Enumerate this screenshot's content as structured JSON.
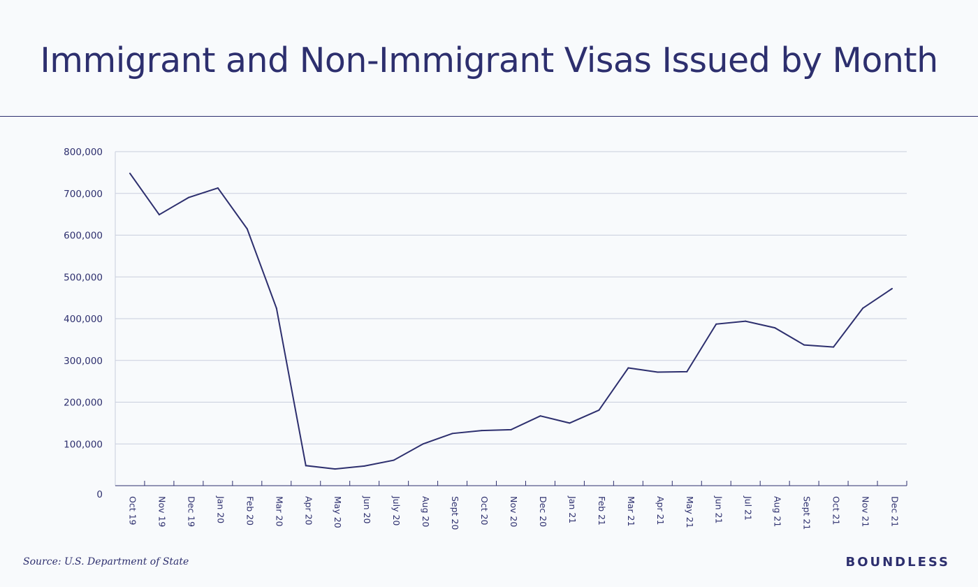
{
  "page": {
    "title": "Immigrant and Non-Immigrant Visas Issued by Month",
    "source": "Source: U.S. Department of State",
    "brand": "BOUNDLESS"
  },
  "colors": {
    "line": "#2d2f6e",
    "grid": "#c9cedd",
    "text": "#2d2f6e",
    "background": "#f8fafc"
  },
  "chart_data": {
    "type": "line",
    "title": "Immigrant and Non-Immigrant Visas Issued by Month",
    "xlabel": "",
    "ylabel": "",
    "ylim": [
      0,
      800000
    ],
    "yticks": [
      0,
      100000,
      200000,
      300000,
      400000,
      500000,
      600000,
      700000,
      800000
    ],
    "ytick_labels": [
      "0",
      "100,000",
      "200,000",
      "300,000",
      "400,000",
      "500,000",
      "600,000",
      "700,000",
      "800,000"
    ],
    "grid": true,
    "categories": [
      "Oct 19",
      "Nov 19",
      "Dec 19",
      "Jan 20",
      "Feb 20",
      "Mar 20",
      "Apr 20",
      "May 20",
      "Jun 20",
      "July 20",
      "Aug 20",
      "Sept 20",
      "Oct 20",
      "Nov 20",
      "Dec 20",
      "Jan 21",
      "Feb 21",
      "Mar 21",
      "Apr 21",
      "May 21",
      "Jun 21",
      "Jul 21",
      "Aug 21",
      "Sept 21",
      "Oct 21",
      "Nov 21",
      "Dec 21"
    ],
    "values": [
      748000,
      649000,
      690000,
      713000,
      615000,
      425000,
      48000,
      40000,
      47000,
      61000,
      100000,
      125000,
      132000,
      134000,
      167000,
      150000,
      181000,
      282000,
      272000,
      273000,
      387000,
      394000,
      378000,
      337000,
      332000,
      425000,
      472000
    ]
  }
}
